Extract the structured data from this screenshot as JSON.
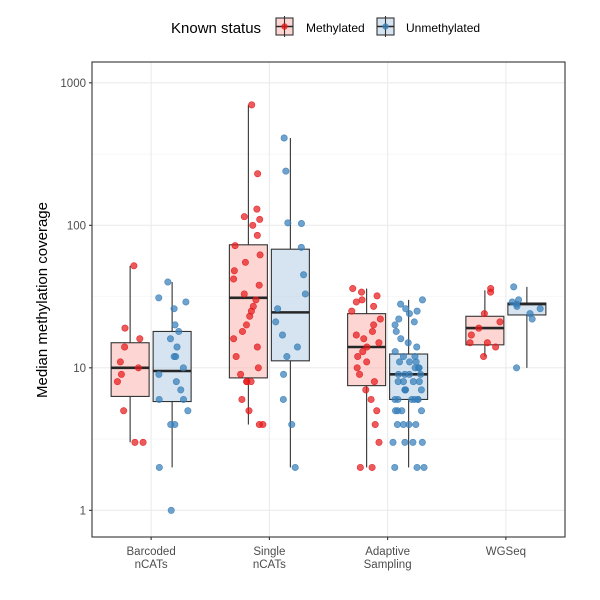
{
  "chart_data": {
    "type": "box",
    "xlabel": "",
    "ylabel": "Median methylation coverage",
    "y_scale": "log10",
    "ylim": [
      0.65,
      1400
    ],
    "y_ticks": [
      1,
      10,
      100,
      1000
    ],
    "y_tick_labels": [
      "1",
      "10",
      "100",
      "1000"
    ],
    "grid": true,
    "categories": [
      {
        "lines": [
          "Barcoded",
          "nCATs"
        ]
      },
      {
        "lines": [
          "Single",
          "nCATs"
        ]
      },
      {
        "lines": [
          "Adaptive",
          "Sampling"
        ]
      },
      {
        "lines": [
          "WGSeq"
        ]
      }
    ],
    "legend": {
      "title": "Known status",
      "position": "top",
      "entries": [
        {
          "label": "Methylated",
          "fill": "#fbb4ae",
          "point": "#e41a1c"
        },
        {
          "label": "Unmethylated",
          "fill": "#b3cde3",
          "point": "#377eb8"
        }
      ]
    },
    "series": [
      {
        "name": "Methylated",
        "box_fill": "#fbb4ae",
        "point_color": "#e41a1c",
        "boxes": [
          {
            "q1": 6.3,
            "median": 10,
            "q3": 15,
            "whisker_low": 3,
            "whisker_high": 52
          },
          {
            "q1": 8.5,
            "median": 31,
            "q3": 73,
            "whisker_low": 4,
            "whisker_high": 700
          },
          {
            "q1": 7.5,
            "median": 14,
            "q3": 24,
            "whisker_low": 2,
            "whisker_high": 36
          },
          {
            "q1": 14.5,
            "median": 19,
            "q3": 23,
            "whisker_low": 12,
            "whisker_high": 35
          }
        ],
        "points": [
          [
            3,
            3,
            5,
            8,
            9,
            10,
            11,
            14,
            16,
            19,
            52
          ],
          [
            4,
            4,
            5,
            6,
            8,
            8,
            8,
            9,
            10,
            12,
            14,
            16,
            18,
            20,
            23,
            25,
            27,
            30,
            33,
            38,
            42,
            48,
            55,
            62,
            72,
            85,
            100,
            110,
            115,
            130,
            230,
            700
          ],
          [
            2,
            2,
            3,
            4,
            5,
            6,
            7,
            8,
            9,
            10,
            11,
            12,
            13,
            14,
            15,
            16,
            17,
            18,
            20,
            22,
            25,
            27,
            29,
            30,
            32,
            34,
            36
          ],
          [
            12,
            14,
            15,
            15,
            17,
            19,
            21,
            24,
            34,
            36
          ]
        ]
      },
      {
        "name": "Unmethylated",
        "box_fill": "#b3cde3",
        "point_color": "#377eb8",
        "boxes": [
          {
            "q1": 5.8,
            "median": 9.5,
            "q3": 18,
            "whisker_low": 2,
            "whisker_high": 40
          },
          {
            "q1": 11.2,
            "median": 24.5,
            "q3": 68,
            "whisker_low": 2,
            "whisker_high": 410
          },
          {
            "q1": 6,
            "median": 9,
            "q3": 12.5,
            "whisker_low": 2,
            "whisker_high": 30
          },
          {
            "q1": 23.5,
            "median": 28,
            "q3": 28.5,
            "whisker_low": 10,
            "whisker_high": 37
          }
        ],
        "points": [
          [
            1,
            2,
            4,
            4,
            5,
            6,
            6,
            7,
            8,
            9,
            10,
            12,
            12,
            14,
            16,
            18,
            20,
            26,
            29,
            31,
            40
          ],
          [
            2,
            4,
            6,
            9,
            12,
            14,
            17,
            21,
            26,
            33,
            45,
            70,
            103,
            104,
            240,
            410
          ],
          [
            2,
            2,
            2,
            3,
            3,
            3,
            3,
            4,
            4,
            4,
            4,
            5,
            5,
            5,
            5,
            6,
            6,
            6,
            6,
            6,
            6,
            7,
            7,
            7,
            7,
            8,
            8,
            8,
            8,
            9,
            9,
            9,
            9,
            10,
            10,
            10,
            11,
            11,
            11,
            12,
            12,
            13,
            14,
            15,
            16,
            18,
            20,
            21,
            22,
            24,
            25,
            26,
            28,
            30
          ],
          [
            10,
            22,
            24,
            26,
            27,
            28,
            29,
            30,
            37
          ]
        ]
      }
    ]
  }
}
